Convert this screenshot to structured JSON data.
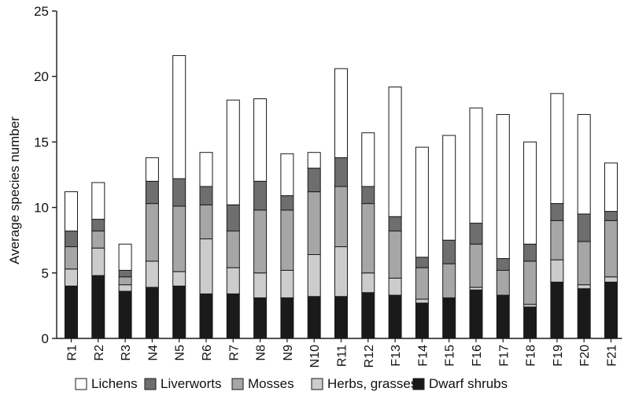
{
  "chart_data": {
    "type": "bar",
    "stacked": true,
    "title": "",
    "xlabel": "",
    "ylabel": "Average species number",
    "ylim": [
      0,
      25
    ],
    "yticks": [
      0,
      5,
      10,
      15,
      20,
      25
    ],
    "grid": false,
    "legend_position": "bottom",
    "categories": [
      "R1",
      "R2",
      "R3",
      "N4",
      "N5",
      "R6",
      "R7",
      "N8",
      "N9",
      "N10",
      "R11",
      "R12",
      "F13",
      "F14",
      "F15",
      "F16",
      "F17",
      "F18",
      "F19",
      "F20",
      "F21"
    ],
    "series": [
      {
        "name": "Dwarf shrubs",
        "color": "#1a1a1a",
        "values": [
          4.0,
          4.8,
          3.6,
          3.9,
          4.0,
          3.4,
          3.4,
          3.1,
          3.1,
          3.2,
          3.2,
          3.5,
          3.3,
          2.7,
          3.1,
          3.7,
          3.3,
          2.4,
          4.3,
          3.8,
          4.3
        ]
      },
      {
        "name": "Herbs, grasses",
        "color": "#cccccc",
        "values": [
          1.3,
          2.1,
          0.5,
          2.0,
          1.1,
          4.2,
          2.0,
          1.9,
          2.1,
          3.2,
          3.8,
          1.5,
          1.3,
          0.3,
          0.0,
          0.2,
          0.0,
          0.2,
          1.7,
          0.3,
          0.4
        ]
      },
      {
        "name": "Mosses",
        "color": "#a6a6a6",
        "values": [
          1.7,
          1.3,
          0.6,
          4.4,
          5.0,
          2.6,
          2.8,
          4.8,
          4.6,
          4.8,
          4.6,
          5.3,
          3.6,
          2.4,
          2.6,
          3.3,
          1.9,
          3.3,
          3.0,
          3.3,
          4.3
        ]
      },
      {
        "name": "Liverworts",
        "color": "#6e6e6e",
        "values": [
          1.2,
          0.9,
          0.5,
          1.7,
          2.1,
          1.4,
          2.0,
          2.2,
          1.1,
          1.8,
          2.2,
          1.3,
          1.1,
          0.8,
          1.8,
          1.6,
          0.9,
          1.3,
          1.3,
          2.1,
          0.7
        ]
      },
      {
        "name": "Lichens",
        "color": "#ffffff",
        "values": [
          3.0,
          2.8,
          2.0,
          1.8,
          9.4,
          2.6,
          8.0,
          6.3,
          3.2,
          1.2,
          6.8,
          4.1,
          9.9,
          8.4,
          8.0,
          8.8,
          11.0,
          7.8,
          8.4,
          7.6,
          3.7
        ]
      }
    ],
    "legend_order": [
      "Lichens",
      "Liverworts",
      "Mosses",
      "Herbs, grasses",
      "Dwarf shrubs"
    ]
  }
}
